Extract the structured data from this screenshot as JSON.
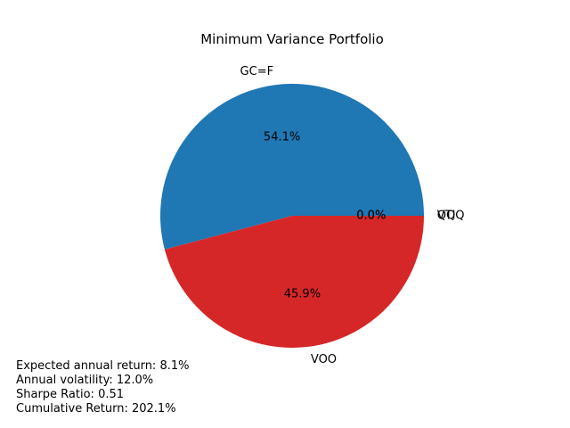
{
  "chart_data": {
    "type": "pie",
    "title": "Minimum Variance Portfolio",
    "categories": [
      "GC=F",
      "VOO",
      "QQQ",
      "VTI"
    ],
    "values": [
      54.1,
      45.9,
      0.0,
      0.0
    ],
    "percent_labels": [
      "54.1%",
      "45.9%",
      "0.0%",
      "0.0%"
    ],
    "colors": [
      "#1f77b4",
      "#d62728",
      "#2ca02c",
      "#ff7f0e"
    ],
    "start_angle_deg": 0,
    "direction": "counterclockwise"
  },
  "stats": {
    "expected_return": "Expected annual return: 8.1%",
    "volatility": "Annual volatility: 12.0%",
    "sharpe": "Sharpe Ratio: 0.51",
    "cumulative": "Cumulative Return: 202.1%"
  }
}
